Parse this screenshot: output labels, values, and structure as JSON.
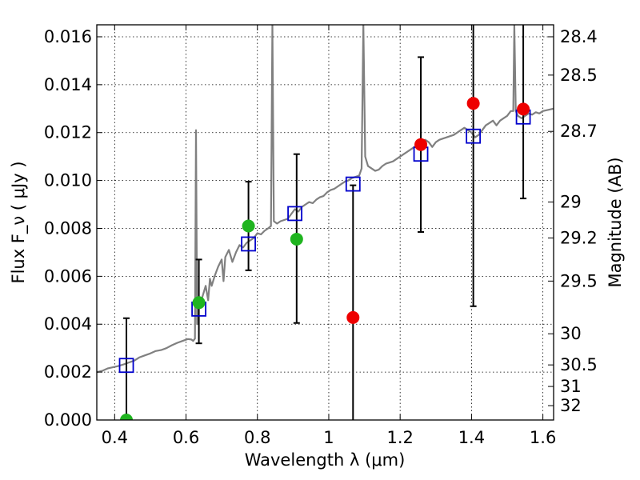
{
  "chart_data": {
    "type": "scatter",
    "title": "",
    "xlabel": "Wavelength  λ (μm)",
    "ylabel": "Flux  F_ν  ( μJy )",
    "ylabel_right": "Magnitude (AB)",
    "xlim": [
      0.35,
      1.63
    ],
    "ylim": [
      0.0,
      0.0165
    ],
    "grid": true,
    "x_ticks": [
      {
        "value": 0.4,
        "label": "0.4"
      },
      {
        "value": 0.6,
        "label": "0.6"
      },
      {
        "value": 0.8,
        "label": "0.8"
      },
      {
        "value": 1.0,
        "label": "1"
      },
      {
        "value": 1.2,
        "label": "1.2"
      },
      {
        "value": 1.4,
        "label": "1.4"
      },
      {
        "value": 1.6,
        "label": "1.6"
      }
    ],
    "y_ticks": [
      {
        "value": 0.0,
        "label": "0.000"
      },
      {
        "value": 0.002,
        "label": "0.002"
      },
      {
        "value": 0.004,
        "label": "0.004"
      },
      {
        "value": 0.006,
        "label": "0.006"
      },
      {
        "value": 0.008,
        "label": "0.008"
      },
      {
        "value": 0.01,
        "label": "0.010"
      },
      {
        "value": 0.012,
        "label": "0.012"
      },
      {
        "value": 0.014,
        "label": "0.014"
      },
      {
        "value": 0.016,
        "label": "0.016"
      }
    ],
    "y2_ticks": [
      {
        "mag": "28.4",
        "flux": 0.016
      },
      {
        "mag": "28.5",
        "flux": 0.0144
      },
      {
        "mag": "28.7",
        "flux": 0.01205
      },
      {
        "mag": "29",
        "flux": 0.0091
      },
      {
        "mag": "29.2",
        "flux": 0.0076
      },
      {
        "mag": "29.5",
        "flux": 0.0058
      },
      {
        "mag": "30",
        "flux": 0.0036
      },
      {
        "mag": "30.5",
        "flux": 0.0023
      },
      {
        "mag": "31",
        "flux": 0.0014
      },
      {
        "mag": "32",
        "flux": 0.0006
      }
    ],
    "colors": {
      "spectrum": "#808080",
      "model": "#0000cc",
      "green": "#1fb41f",
      "red": "#ee0000",
      "errorbar": "#000000"
    },
    "series": [
      {
        "kind": "line",
        "points": [
          [
            0.35,
            0.002
          ],
          [
            0.365,
            0.00205
          ],
          [
            0.38,
            0.00215
          ],
          [
            0.395,
            0.0022
          ],
          [
            0.41,
            0.00225
          ],
          [
            0.425,
            0.00232
          ],
          [
            0.44,
            0.0024
          ],
          [
            0.455,
            0.00248
          ],
          [
            0.47,
            0.00262
          ],
          [
            0.485,
            0.0027
          ],
          [
            0.5,
            0.00278
          ],
          [
            0.515,
            0.00288
          ],
          [
            0.53,
            0.00292
          ],
          [
            0.545,
            0.003
          ],
          [
            0.56,
            0.00312
          ],
          [
            0.575,
            0.00322
          ],
          [
            0.59,
            0.0033
          ],
          [
            0.605,
            0.00338
          ],
          [
            0.615,
            0.00336
          ],
          [
            0.62,
            0.0033
          ],
          [
            0.625,
            0.0034
          ],
          [
            0.628,
            0.0121
          ],
          [
            0.631,
            0.004
          ],
          [
            0.636,
            0.0047
          ],
          [
            0.645,
            0.0051
          ],
          [
            0.655,
            0.0056
          ],
          [
            0.662,
            0.005
          ],
          [
            0.667,
            0.0059
          ],
          [
            0.672,
            0.0056
          ],
          [
            0.68,
            0.006
          ],
          [
            0.69,
            0.0064
          ],
          [
            0.7,
            0.0067
          ],
          [
            0.705,
            0.0058
          ],
          [
            0.71,
            0.0068
          ],
          [
            0.72,
            0.0071
          ],
          [
            0.73,
            0.0066
          ],
          [
            0.74,
            0.007
          ],
          [
            0.75,
            0.0073
          ],
          [
            0.76,
            0.0072
          ],
          [
            0.77,
            0.0074
          ],
          [
            0.78,
            0.0075
          ],
          [
            0.79,
            0.0076
          ],
          [
            0.8,
            0.0078
          ],
          [
            0.81,
            0.00775
          ],
          [
            0.82,
            0.0079
          ],
          [
            0.83,
            0.008
          ],
          [
            0.838,
            0.0081
          ],
          [
            0.842,
            0.0165
          ],
          [
            0.846,
            0.0083
          ],
          [
            0.855,
            0.0082
          ],
          [
            0.865,
            0.0083
          ],
          [
            0.875,
            0.00835
          ],
          [
            0.885,
            0.0084
          ],
          [
            0.895,
            0.0086
          ],
          [
            0.905,
            0.0088
          ],
          [
            0.915,
            0.0087
          ],
          [
            0.925,
            0.0089
          ],
          [
            0.935,
            0.009
          ],
          [
            0.945,
            0.0091
          ],
          [
            0.955,
            0.00905
          ],
          [
            0.965,
            0.0092
          ],
          [
            0.975,
            0.0093
          ],
          [
            0.985,
            0.00935
          ],
          [
            0.995,
            0.0095
          ],
          [
            1.005,
            0.0096
          ],
          [
            1.015,
            0.00965
          ],
          [
            1.025,
            0.00975
          ],
          [
            1.035,
            0.00985
          ],
          [
            1.045,
            0.00995
          ],
          [
            1.055,
            0.01
          ],
          [
            1.065,
            0.0101
          ],
          [
            1.075,
            0.01015
          ],
          [
            1.085,
            0.0102
          ],
          [
            1.092,
            0.0105
          ],
          [
            1.097,
            0.0165
          ],
          [
            1.102,
            0.011
          ],
          [
            1.11,
            0.0106
          ],
          [
            1.12,
            0.0105
          ],
          [
            1.13,
            0.0104
          ],
          [
            1.14,
            0.01045
          ],
          [
            1.15,
            0.0106
          ],
          [
            1.16,
            0.0107
          ],
          [
            1.17,
            0.01075
          ],
          [
            1.18,
            0.0108
          ],
          [
            1.19,
            0.0109
          ],
          [
            1.2,
            0.011
          ],
          [
            1.21,
            0.0111
          ],
          [
            1.22,
            0.0112
          ],
          [
            1.23,
            0.0113
          ],
          [
            1.24,
            0.0114
          ],
          [
            1.25,
            0.0115
          ],
          [
            1.26,
            0.0116
          ],
          [
            1.27,
            0.0117
          ],
          [
            1.28,
            0.0116
          ],
          [
            1.29,
            0.0114
          ],
          [
            1.3,
            0.0116
          ],
          [
            1.31,
            0.0117
          ],
          [
            1.32,
            0.01175
          ],
          [
            1.33,
            0.0118
          ],
          [
            1.34,
            0.01185
          ],
          [
            1.35,
            0.0119
          ],
          [
            1.36,
            0.012
          ],
          [
            1.37,
            0.0121
          ],
          [
            1.38,
            0.0122
          ],
          [
            1.39,
            0.0121
          ],
          [
            1.4,
            0.012
          ],
          [
            1.41,
            0.0118
          ],
          [
            1.42,
            0.0119
          ],
          [
            1.43,
            0.0121
          ],
          [
            1.44,
            0.0123
          ],
          [
            1.45,
            0.0124
          ],
          [
            1.46,
            0.0125
          ],
          [
            1.47,
            0.0123
          ],
          [
            1.48,
            0.0125
          ],
          [
            1.49,
            0.0126
          ],
          [
            1.5,
            0.0127
          ],
          [
            1.51,
            0.0129
          ],
          [
            1.517,
            0.0129
          ],
          [
            1.52,
            0.0165
          ],
          [
            1.524,
            0.0129
          ],
          [
            1.53,
            0.0127
          ],
          [
            1.54,
            0.0126
          ],
          [
            1.55,
            0.0127
          ],
          [
            1.56,
            0.0128
          ],
          [
            1.57,
            0.01275
          ],
          [
            1.58,
            0.01285
          ],
          [
            1.59,
            0.0128
          ],
          [
            1.6,
            0.0129
          ],
          [
            1.615,
            0.01295
          ],
          [
            1.63,
            0.013
          ]
        ]
      },
      {
        "kind": "open-squares",
        "points": [
          [
            0.433,
            0.00228
          ],
          [
            0.636,
            0.00463
          ],
          [
            0.775,
            0.00735
          ],
          [
            0.905,
            0.00862
          ],
          [
            1.068,
            0.00985
          ],
          [
            1.258,
            0.0111
          ],
          [
            1.405,
            0.01185
          ],
          [
            1.545,
            0.01265
          ]
        ]
      },
      {
        "kind": "green-dots",
        "points": [
          [
            0.433,
            0.0
          ],
          [
            0.636,
            0.0049
          ],
          [
            0.775,
            0.0081
          ],
          [
            0.91,
            0.00755
          ]
        ],
        "yerr_low": [
          0.0,
          0.0032,
          0.00625,
          0.00405
        ],
        "yerr_high": [
          0.00425,
          0.0067,
          0.00995,
          0.0111
        ]
      },
      {
        "kind": "red-dots",
        "points": [
          [
            1.068,
            0.00428
          ],
          [
            1.258,
            0.0115
          ],
          [
            1.405,
            0.01322
          ],
          [
            1.545,
            0.01298
          ]
        ],
        "yerr_low": [
          0.0,
          0.00785,
          0.00475,
          0.00925
        ],
        "yerr_high": [
          0.0098,
          0.01515,
          0.0165,
          0.0165
        ]
      }
    ]
  }
}
